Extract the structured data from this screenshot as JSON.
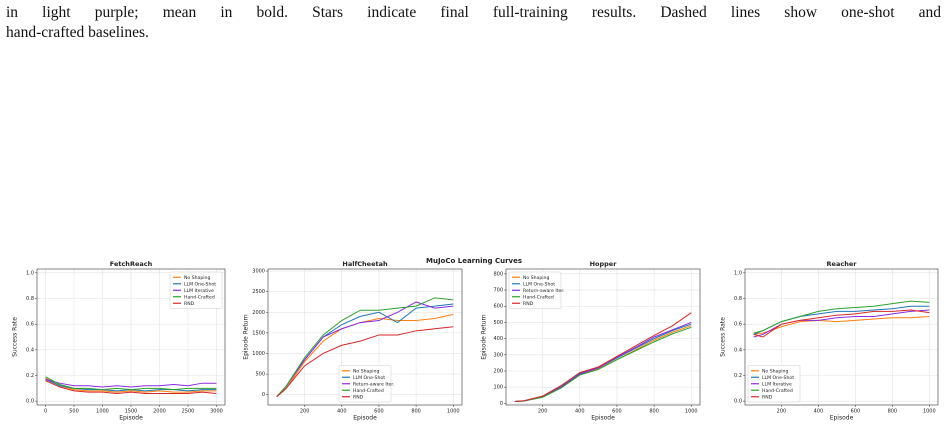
{
  "caption": [
    "in light purple; mean in bold. Stars indicate final full-training results. Dashed lines show one-shot and",
    "hand-crafted baselines."
  ],
  "figure_title": "MuJoCo Learning Curves",
  "chart_data": [
    {
      "type": "line",
      "title": "FetchReach",
      "xlabel": "Episode",
      "ylabel": "Success Rate",
      "grid": true,
      "legend": "upper right",
      "x": [
        0,
        250,
        500,
        750,
        1000,
        1250,
        1500,
        1750,
        2000,
        2250,
        2500,
        2750,
        3000
      ],
      "xlim": [
        -150,
        3150
      ],
      "xticks": [
        0,
        500,
        1000,
        1500,
        2000,
        2500,
        3000
      ],
      "ylim": [
        -0.03,
        1.03
      ],
      "yticks": [
        {
          "value": 0,
          "label": "0.0"
        },
        {
          "value": 0.2,
          "label": "0.2"
        },
        {
          "value": 0.4,
          "label": "0.4"
        },
        {
          "value": 0.6,
          "label": "0.6"
        },
        {
          "value": 0.8,
          "label": "0.8"
        },
        {
          "value": 1,
          "label": "1.0"
        }
      ],
      "series": [
        {
          "name": "No Shaping",
          "color": "#ff7f0e",
          "values": [
            0.18,
            0.12,
            0.09,
            0.08,
            0.08,
            0.07,
            0.08,
            0.07,
            0.08,
            0.07,
            0.07,
            0.08,
            0.08
          ]
        },
        {
          "name": "LLM One-Shot",
          "color": "#1f77b4",
          "values": [
            0.17,
            0.12,
            0.1,
            0.09,
            0.09,
            0.08,
            0.09,
            0.08,
            0.09,
            0.09,
            0.08,
            0.09,
            0.09
          ]
        },
        {
          "name": "LLM Iterative",
          "color": "#8a2be2",
          "values": [
            0.17,
            0.14,
            0.12,
            0.12,
            0.11,
            0.12,
            0.11,
            0.12,
            0.12,
            0.13,
            0.12,
            0.14,
            0.14
          ]
        },
        {
          "name": "Hand-Crafted",
          "color": "#2ca02c",
          "values": [
            0.19,
            0.13,
            0.1,
            0.1,
            0.09,
            0.1,
            0.09,
            0.1,
            0.1,
            0.09,
            0.1,
            0.1,
            0.1
          ]
        },
        {
          "name": "RND",
          "color": "#d62728",
          "values": [
            0.16,
            0.11,
            0.08,
            0.07,
            0.07,
            0.06,
            0.07,
            0.06,
            0.06,
            0.06,
            0.06,
            0.07,
            0.06
          ]
        }
      ]
    },
    {
      "type": "line",
      "title": "HalfCheetah",
      "xlabel": "Episode",
      "ylabel": "Episode Return",
      "grid": true,
      "legend": "lower center",
      "x": [
        50,
        100,
        200,
        300,
        400,
        500,
        600,
        700,
        800,
        900,
        1000
      ],
      "xlim": [
        3,
        1047
      ],
      "xticks": [
        200,
        400,
        600,
        800,
        1000
      ],
      "ylim": [
        -250,
        3050
      ],
      "yticks": [
        0,
        500,
        1000,
        1500,
        2000,
        2500,
        3000
      ],
      "series": [
        {
          "name": "No Shaping",
          "color": "#ff7f0e",
          "values": [
            -50,
            150,
            800,
            1300,
            1600,
            1750,
            1850,
            1800,
            1800,
            1850,
            1950
          ]
        },
        {
          "name": "LLM One-Shot",
          "color": "#1f77b4",
          "values": [
            -50,
            200,
            850,
            1400,
            1700,
            1900,
            2000,
            1750,
            2100,
            2150,
            2200
          ]
        },
        {
          "name": "Return-aware Iter.",
          "color": "#8a2be2",
          "values": [
            -50,
            200,
            850,
            1400,
            1600,
            1750,
            1800,
            2000,
            2250,
            2100,
            2150
          ]
        },
        {
          "name": "Hand-Crafted",
          "color": "#2ca02c",
          "values": [
            -50,
            200,
            900,
            1450,
            1800,
            2050,
            2050,
            2100,
            2150,
            2350,
            2300
          ]
        },
        {
          "name": "RND",
          "color": "#d62728",
          "values": [
            -50,
            150,
            700,
            1000,
            1200,
            1300,
            1450,
            1450,
            1550,
            1600,
            1650
          ]
        }
      ]
    },
    {
      "type": "line",
      "title": "Hopper",
      "xlabel": "Episode",
      "ylabel": "Episode Return",
      "grid": true,
      "legend": "upper left",
      "x": [
        50,
        100,
        200,
        300,
        400,
        500,
        600,
        700,
        800,
        900,
        1000
      ],
      "xlim": [
        3,
        1047
      ],
      "xticks": [
        200,
        400,
        600,
        800,
        1000
      ],
      "ylim": [
        -10,
        830
      ],
      "yticks": [
        0,
        100,
        200,
        300,
        400,
        500,
        600,
        700,
        800
      ],
      "series": [
        {
          "name": "No Shaping",
          "color": "#ff7f0e",
          "values": [
            12,
            15,
            40,
            100,
            180,
            215,
            270,
            330,
            390,
            440,
            480
          ]
        },
        {
          "name": "LLM One-Shot",
          "color": "#1f77b4",
          "values": [
            12,
            16,
            42,
            105,
            185,
            220,
            280,
            340,
            400,
            450,
            490
          ]
        },
        {
          "name": "Return-aware Iter.",
          "color": "#8a2be2",
          "values": [
            12,
            15,
            40,
            100,
            180,
            220,
            285,
            345,
            410,
            455,
            500
          ]
        },
        {
          "name": "Hand-Crafted",
          "color": "#2ca02c",
          "values": [
            12,
            15,
            38,
            95,
            175,
            210,
            270,
            325,
            380,
            430,
            470
          ]
        },
        {
          "name": "RND",
          "color": "#d62728",
          "values": [
            12,
            16,
            45,
            110,
            190,
            225,
            290,
            355,
            420,
            480,
            560
          ]
        }
      ]
    },
    {
      "type": "line",
      "title": "Reacher",
      "xlabel": "Episode",
      "ylabel": "Success Rate",
      "grid": true,
      "legend": "lower left",
      "x": [
        50,
        100,
        200,
        300,
        400,
        500,
        600,
        700,
        800,
        900,
        1000
      ],
      "xlim": [
        3,
        1047
      ],
      "xticks": [
        200,
        400,
        600,
        800,
        1000
      ],
      "ylim": [
        -0.03,
        1.03
      ],
      "yticks": [
        {
          "value": 0,
          "label": "0.0"
        },
        {
          "value": 0.2,
          "label": "0.2"
        },
        {
          "value": 0.4,
          "label": "0.4"
        },
        {
          "value": 0.6,
          "label": "0.6"
        },
        {
          "value": 0.8,
          "label": "0.8"
        },
        {
          "value": 1,
          "label": "1.0"
        }
      ],
      "series": [
        {
          "name": "No Shaping",
          "color": "#ff7f0e",
          "values": [
            0.52,
            0.53,
            0.58,
            0.62,
            0.63,
            0.62,
            0.63,
            0.64,
            0.65,
            0.65,
            0.66
          ]
        },
        {
          "name": "LLM One-Shot",
          "color": "#1f77b4",
          "values": [
            0.52,
            0.55,
            0.62,
            0.66,
            0.68,
            0.7,
            0.7,
            0.71,
            0.72,
            0.74,
            0.74
          ]
        },
        {
          "name": "LLM Iterative",
          "color": "#8a2be2",
          "values": [
            0.5,
            0.52,
            0.6,
            0.63,
            0.63,
            0.65,
            0.66,
            0.66,
            0.68,
            0.7,
            0.71
          ]
        },
        {
          "name": "Hand-Crafted",
          "color": "#2ca02c",
          "values": [
            0.53,
            0.55,
            0.62,
            0.66,
            0.7,
            0.72,
            0.73,
            0.74,
            0.76,
            0.78,
            0.77
          ]
        },
        {
          "name": "RND",
          "color": "#d62728",
          "values": [
            0.52,
            0.5,
            0.6,
            0.63,
            0.65,
            0.67,
            0.68,
            0.7,
            0.7,
            0.71,
            0.69
          ]
        }
      ]
    }
  ]
}
